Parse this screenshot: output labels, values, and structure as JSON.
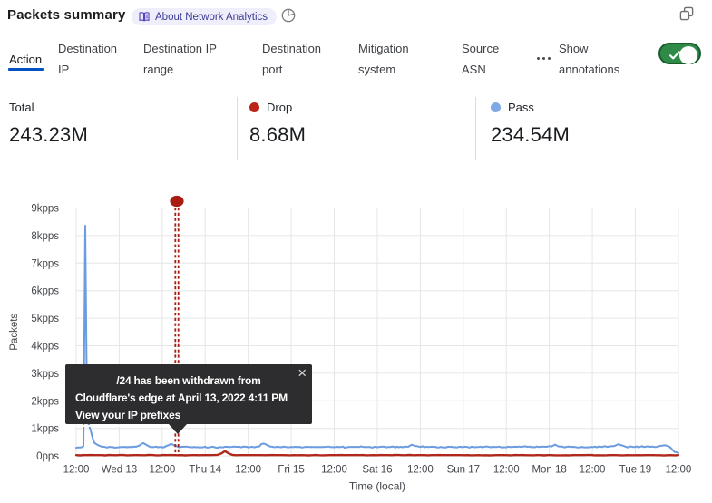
{
  "header": {
    "title": "Packets summary",
    "about_badge_label": "About Network Analytics"
  },
  "tabs": [
    {
      "label": "Action",
      "active": true
    },
    {
      "label": "Destination IP",
      "active": false
    },
    {
      "label": "Destination IP range",
      "active": false
    },
    {
      "label": "Destination port",
      "active": false
    },
    {
      "label": "Mitigation system",
      "active": false
    },
    {
      "label": "Source ASN",
      "active": false
    }
  ],
  "more_tabs_label": "•••",
  "annotations_toggle": {
    "label": "Show annotations",
    "state": "on"
  },
  "stats": {
    "total": {
      "label": "Total",
      "value": "243.23M"
    },
    "drop": {
      "label": "Drop",
      "value": "8.68M",
      "dot_color": "#bb2418"
    },
    "pass": {
      "label": "Pass",
      "value": "234.54M",
      "dot_color": "#7fa9e4"
    }
  },
  "tooltip": {
    "line1": "/24 has been withdrawn from",
    "line2": "Cloudflare's edge at April 13, 2022 4:11 PM",
    "link_label": "View your IP prefixes",
    "close_label": "×"
  },
  "theme": {
    "accent_blue": "#0051c3",
    "toggle_green": "#2e8a46",
    "toggle_green_border": "#1b5c2e",
    "badge_bg": "#efeefb",
    "badge_text": "#3d3a96",
    "tooltip_bg": "#2d2d2f",
    "grid_color": "#e6e6e6",
    "axis_text_color": "#43464b"
  },
  "chart_data": {
    "type": "line",
    "xlabel": "Time (local)",
    "ylabel": "Packets",
    "ylim": [
      0,
      9
    ],
    "y_unit": "kpps",
    "grid": true,
    "legend_position": "top",
    "y_tick_labels": [
      "0pps",
      "1kpps",
      "2kpps",
      "3kpps",
      "4kpps",
      "5kpps",
      "6kpps",
      "7kpps",
      "8kpps",
      "9kpps"
    ],
    "x_tick_labels": [
      "12:00",
      "Wed 13",
      "12:00",
      "Thu 14",
      "12:00",
      "Fri 15",
      "12:00",
      "Sat 16",
      "12:00",
      "Sun 17",
      "12:00",
      "Mon 18",
      "12:00",
      "Tue 19",
      "12:00"
    ],
    "series": [
      {
        "name": "Drop",
        "color": "#b0281c",
        "width": 2.4,
        "values_kpps": [
          0.03,
          0.019,
          0.03,
          0.03,
          0.034,
          0.029,
          0.028,
          0.03,
          0.021,
          0.032,
          0.029,
          0.026,
          0.033,
          0.034,
          0.023,
          0.026,
          0.029,
          0.029,
          0.027,
          0.025,
          0.035,
          0.032,
          0.024,
          0.023,
          0.034,
          0.031,
          0.034,
          0.031,
          0.025,
          0.029,
          0.02,
          0.025,
          0.028,
          0.03,
          0.025,
          0.028,
          0.03,
          0.029,
          0.034,
          0.041,
          0.089,
          0.175,
          0.096,
          0.04,
          0.027,
          0.028,
          0.03,
          0.029,
          0.03,
          0.03,
          0.03,
          0.029,
          0.025,
          0.031,
          0.033,
          0.031,
          0.029,
          0.031,
          0.026,
          0.022,
          0.029,
          0.026,
          0.031,
          0.025,
          0.02,
          0.025,
          0.034,
          0.027,
          0.024,
          0.026,
          0.03,
          0.03,
          0.029,
          0.033,
          0.031,
          0.028,
          0.03,
          0.034,
          0.031,
          0.032,
          0.024,
          0.027,
          0.031,
          0.027,
          0.032,
          0.03,
          0.031,
          0.027,
          0.037,
          0.032,
          0.027,
          0.028,
          0.037,
          0.027,
          0.031,
          0.031,
          0.028,
          0.024,
          0.029,
          0.029,
          0.032,
          0.031,
          0.028,
          0.031,
          0.03,
          0.029,
          0.028,
          0.027,
          0.03,
          0.024,
          0.026,
          0.028,
          0.023,
          0.026,
          0.021,
          0.026,
          0.03,
          0.03,
          0.028,
          0.027,
          0.023,
          0.034,
          0.03,
          0.032,
          0.025,
          0.027,
          0.022,
          0.031,
          0.031,
          0.021,
          0.028,
          0.03,
          0.022,
          0.022,
          0.024,
          0.026,
          0.023,
          0.028,
          0.029,
          0.03,
          0.03,
          0.033,
          0.032,
          0.023,
          0.026,
          0.024,
          0.024,
          0.028,
          0.028,
          0.03,
          0.022,
          0.024,
          0.028,
          0.027,
          0.027,
          0.028,
          0.025,
          0.03,
          0.029,
          0.028,
          0.026,
          0.027,
          0.018,
          0.025,
          0.028,
          0.023,
          0.029
        ]
      },
      {
        "name": "Pass",
        "color": "#6b9cdf",
        "width": 2,
        "values_kpps": [
          0.297,
          0.309,
          0.306,
          0.317,
          0.351,
          8.36,
          1.3,
          1.12,
          0.92,
          0.66,
          0.478,
          0.431,
          0.391,
          0.369,
          0.337,
          0.334,
          0.327,
          0.303,
          0.329,
          0.326,
          0.326,
          0.304,
          0.304,
          0.313,
          0.318,
          0.326,
          0.322,
          0.328,
          0.317,
          0.327,
          0.328,
          0.318,
          0.342,
          0.331,
          0.36,
          0.38,
          0.433,
          0.467,
          0.429,
          0.39,
          0.352,
          0.326,
          0.319,
          0.322,
          0.338,
          0.316,
          0.325,
          0.326,
          0.305,
          0.34,
          0.373,
          0.387,
          0.432,
          0.422,
          0.382,
          0.365,
          0.338,
          0.31,
          0.333,
          0.331,
          0.334,
          0.338,
          0.327,
          0.325,
          0.31,
          0.329,
          0.316,
          0.318,
          0.309,
          0.312,
          0.316,
          0.334,
          0.301,
          0.306,
          0.323,
          0.334,
          0.326,
          0.302,
          0.296,
          0.326,
          0.315,
          0.312,
          0.333,
          0.335,
          0.326,
          0.327,
          0.33,
          0.342,
          0.332,
          0.331,
          0.332,
          0.311,
          0.34,
          0.337,
          0.333,
          0.308,
          0.322,
          0.337,
          0.311,
          0.328,
          0.34,
          0.344,
          0.426,
          0.449,
          0.438,
          0.403,
          0.373,
          0.343,
          0.336,
          0.318,
          0.32,
          0.335,
          0.324,
          0.315,
          0.333,
          0.338,
          0.319,
          0.309,
          0.321,
          0.321,
          0.319,
          0.336,
          0.312,
          0.334,
          0.309,
          0.313,
          0.327,
          0.332,
          0.329,
          0.324,
          0.321,
          0.322,
          0.326,
          0.319,
          0.324,
          0.327,
          0.322,
          0.329,
          0.328,
          0.342,
          0.326,
          0.318,
          0.319,
          0.323,
          0.333,
          0.32,
          0.328,
          0.343,
          0.299,
          0.314,
          0.327,
          0.329,
          0.328,
          0.321,
          0.332,
          0.329,
          0.321,
          0.35,
          0.33,
          0.321,
          0.326,
          0.324,
          0.326,
          0.3,
          0.322,
          0.337,
          0.316,
          0.327,
          0.337,
          0.336,
          0.343,
          0.311,
          0.325,
          0.325,
          0.335,
          0.34,
          0.302,
          0.34,
          0.315,
          0.336,
          0.315,
          0.331,
          0.342,
          0.329,
          0.367,
          0.408,
          0.381,
          0.359,
          0.355,
          0.34,
          0.326,
          0.356,
          0.317,
          0.337,
          0.325,
          0.328,
          0.334,
          0.328,
          0.332,
          0.31,
          0.31,
          0.33,
          0.314,
          0.313,
          0.308,
          0.335,
          0.329,
          0.336,
          0.312,
          0.32,
          0.309,
          0.328,
          0.336,
          0.312,
          0.336,
          0.331,
          0.319,
          0.302,
          0.336,
          0.321,
          0.316,
          0.326,
          0.326,
          0.338,
          0.313,
          0.334,
          0.338,
          0.338,
          0.322,
          0.316,
          0.334,
          0.325,
          0.326,
          0.339,
          0.322,
          0.302,
          0.322,
          0.308,
          0.335,
          0.33,
          0.322,
          0.328,
          0.337,
          0.33,
          0.343,
          0.33,
          0.342,
          0.347,
          0.348,
          0.326,
          0.342,
          0.315,
          0.324,
          0.315,
          0.346,
          0.324,
          0.337,
          0.335,
          0.337,
          0.332,
          0.341,
          0.357,
          0.34,
          0.375,
          0.41,
          0.378,
          0.347,
          0.339,
          0.341,
          0.313,
          0.322,
          0.338,
          0.335,
          0.326,
          0.333,
          0.326,
          0.312,
          0.307,
          0.315,
          0.33,
          0.314,
          0.313,
          0.317,
          0.312,
          0.328,
          0.32,
          0.338,
          0.313,
          0.342,
          0.335,
          0.324,
          0.353,
          0.345,
          0.328,
          0.344,
          0.358,
          0.353,
          0.368,
          0.397,
          0.427,
          0.398,
          0.383,
          0.357,
          0.335,
          0.309,
          0.339,
          0.343,
          0.327,
          0.325,
          0.349,
          0.312,
          0.335,
          0.354,
          0.321,
          0.337,
          0.349,
          0.329,
          0.336,
          0.339,
          0.321,
          0.329,
          0.346,
          0.365,
          0.37,
          0.388,
          0.38,
          0.366,
          0.339,
          0.281,
          0.206,
          0.142,
          0.137,
          0.101
        ]
      }
    ],
    "annotation": {
      "x_frac": 0.1672,
      "color": "#a81d10",
      "marker": "dot",
      "text": "/24 has been withdrawn from Cloudflare's edge at April 13, 2022 4:11 PM"
    }
  }
}
